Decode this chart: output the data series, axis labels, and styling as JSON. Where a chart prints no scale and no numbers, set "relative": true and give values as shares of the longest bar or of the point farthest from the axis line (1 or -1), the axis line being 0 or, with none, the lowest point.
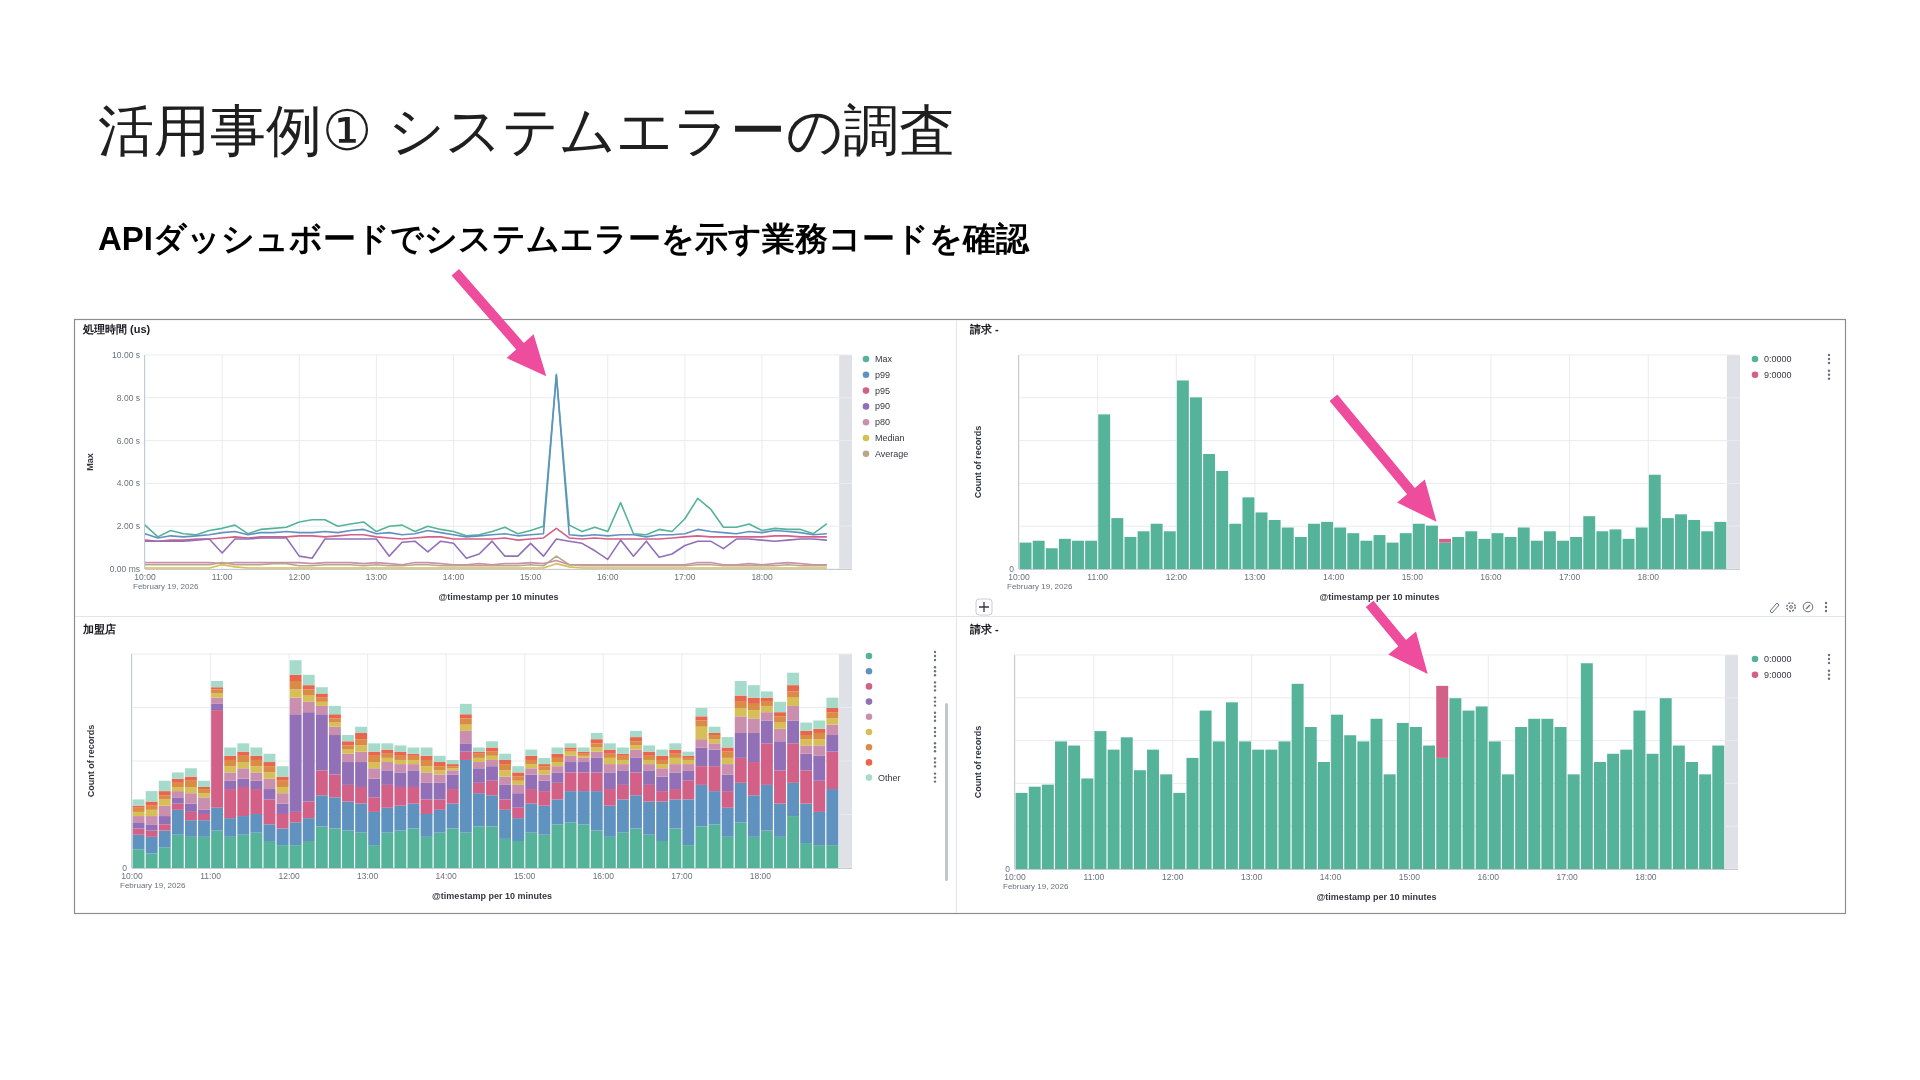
{
  "chart_data": [
    {
      "type": "other",
      "title": "活用事例① システムエラーの調査",
      "subtitle": "APIダッシュボードでシステムエラーを示す業務コードを確認"
    },
    {
      "type": "line",
      "title": "処理時間 (us)",
      "xlabel": "@timestamp per 10 minutes",
      "ylabel": "Max",
      "annotations": [
        "February 19, 2026"
      ],
      "grid": true,
      "legend": "right",
      "xlim": [
        "2026-02-19T10:00",
        "2026-02-19T19:10"
      ],
      "xticks": [
        {
          "value": "2026-02-19T10:00",
          "label": "10:00"
        },
        {
          "value": "2026-02-19T11:00",
          "label": "11:00"
        },
        {
          "value": "2026-02-19T12:00",
          "label": "12:00"
        },
        {
          "value": "2026-02-19T13:00",
          "label": "13:00"
        },
        {
          "value": "2026-02-19T14:00",
          "label": "14:00"
        },
        {
          "value": "2026-02-19T15:00",
          "label": "15:00"
        },
        {
          "value": "2026-02-19T16:00",
          "label": "16:00"
        },
        {
          "value": "2026-02-19T17:00",
          "label": "17:00"
        },
        {
          "value": "2026-02-19T18:00",
          "label": "18:00"
        }
      ],
      "ylim": [
        0,
        10
      ],
      "yticks": [
        {
          "value": 0,
          "label": "0.00 ms"
        },
        {
          "value": 2,
          "label": "2.00 s"
        },
        {
          "value": 4,
          "label": "4.00 s"
        },
        {
          "value": 6,
          "label": "6.00 s"
        },
        {
          "value": 8,
          "label": "8.00 s"
        },
        {
          "value": 10,
          "label": "10.00 s"
        }
      ],
      "bands": [
        {
          "axis": "x",
          "from": "2026-02-19T19:00",
          "to": "2026-02-19T19:10",
          "color": "#dfe1e6"
        }
      ],
      "x": [
        "2026-02-19T10:00",
        "2026-02-19T10:10",
        "2026-02-19T10:20",
        "2026-02-19T10:30",
        "2026-02-19T10:40",
        "2026-02-19T10:50",
        "2026-02-19T11:00",
        "2026-02-19T11:10",
        "2026-02-19T11:20",
        "2026-02-19T11:30",
        "2026-02-19T11:40",
        "2026-02-19T11:50",
        "2026-02-19T12:00",
        "2026-02-19T12:10",
        "2026-02-19T12:20",
        "2026-02-19T12:30",
        "2026-02-19T12:40",
        "2026-02-19T12:50",
        "2026-02-19T13:00",
        "2026-02-19T13:10",
        "2026-02-19T13:20",
        "2026-02-19T13:30",
        "2026-02-19T13:40",
        "2026-02-19T13:50",
        "2026-02-19T14:00",
        "2026-02-19T14:10",
        "2026-02-19T14:20",
        "2026-02-19T14:30",
        "2026-02-19T14:40",
        "2026-02-19T14:50",
        "2026-02-19T15:00",
        "2026-02-19T15:10",
        "2026-02-19T15:20",
        "2026-02-19T15:30",
        "2026-02-19T15:40",
        "2026-02-19T15:50",
        "2026-02-19T16:00",
        "2026-02-19T16:10",
        "2026-02-19T16:20",
        "2026-02-19T16:30",
        "2026-02-19T16:40",
        "2026-02-19T16:50",
        "2026-02-19T17:00",
        "2026-02-19T17:10",
        "2026-02-19T17:20",
        "2026-02-19T17:30",
        "2026-02-19T17:40",
        "2026-02-19T17:50",
        "2026-02-19T18:00",
        "2026-02-19T18:10",
        "2026-02-19T18:20",
        "2026-02-19T18:30",
        "2026-02-19T18:40",
        "2026-02-19T18:50"
      ],
      "series": [
        {
          "name": "Max",
          "color": "#54b399",
          "values": [
            2.05,
            1.5,
            1.8,
            1.65,
            1.6,
            1.8,
            1.9,
            2.05,
            1.65,
            1.85,
            1.9,
            1.95,
            2.2,
            2.3,
            2.3,
            2.0,
            2.1,
            2.2,
            1.75,
            2.0,
            2.05,
            1.75,
            2.0,
            1.85,
            1.75,
            1.55,
            1.6,
            1.75,
            1.95,
            1.65,
            1.8,
            2.0,
            9.1,
            2.05,
            1.75,
            1.95,
            1.75,
            3.1,
            1.65,
            1.6,
            1.85,
            1.75,
            2.35,
            3.3,
            2.8,
            1.95,
            1.95,
            2.1,
            1.8,
            1.9,
            1.85,
            1.85,
            1.65,
            2.1
          ]
        },
        {
          "name": "p99",
          "color": "#6092c0",
          "values": [
            1.65,
            1.45,
            1.55,
            1.5,
            1.55,
            1.6,
            1.7,
            1.75,
            1.6,
            1.7,
            1.7,
            1.75,
            1.7,
            1.7,
            1.75,
            1.7,
            1.8,
            1.85,
            1.65,
            1.7,
            1.6,
            1.65,
            1.8,
            1.7,
            1.6,
            1.5,
            1.55,
            1.6,
            1.65,
            1.55,
            1.6,
            1.65,
            9.05,
            1.6,
            1.55,
            1.6,
            1.55,
            1.6,
            1.6,
            1.5,
            1.6,
            1.6,
            1.65,
            1.85,
            1.75,
            1.7,
            1.65,
            1.75,
            1.7,
            1.8,
            1.75,
            1.7,
            1.6,
            1.65
          ]
        },
        {
          "name": "p95",
          "color": "#d36086",
          "values": [
            1.35,
            1.3,
            1.35,
            1.35,
            1.4,
            1.4,
            1.45,
            1.5,
            1.45,
            1.5,
            1.5,
            1.5,
            1.55,
            1.55,
            1.5,
            1.55,
            1.6,
            1.6,
            1.5,
            1.45,
            1.4,
            1.45,
            1.5,
            1.5,
            1.4,
            1.4,
            1.4,
            1.4,
            1.45,
            1.35,
            1.4,
            1.45,
            1.9,
            1.45,
            1.4,
            1.45,
            1.4,
            1.4,
            1.4,
            1.4,
            1.4,
            1.45,
            1.5,
            1.55,
            1.5,
            1.5,
            1.5,
            1.5,
            1.5,
            1.55,
            1.55,
            1.5,
            1.5,
            1.5
          ]
        },
        {
          "name": "p90",
          "color": "#9170b8",
          "values": [
            1.3,
            1.3,
            1.3,
            1.3,
            1.35,
            1.4,
            0.75,
            1.4,
            1.4,
            1.45,
            1.45,
            1.45,
            0.6,
            0.5,
            1.4,
            1.4,
            1.4,
            1.4,
            1.4,
            0.6,
            1.25,
            1.3,
            0.8,
            1.3,
            1.2,
            0.5,
            0.7,
            1.3,
            0.6,
            0.6,
            1.2,
            0.6,
            1.4,
            1.3,
            1.2,
            0.85,
            0.45,
            1.35,
            0.6,
            1.3,
            0.55,
            0.7,
            1.1,
            1.3,
            1.3,
            0.95,
            1.4,
            1.4,
            1.35,
            1.3,
            1.35,
            1.4,
            1.4,
            1.35
          ]
        },
        {
          "name": "p80",
          "color": "#ca8eae",
          "values": [
            0.3,
            0.3,
            0.3,
            0.3,
            0.3,
            0.3,
            0.25,
            0.3,
            0.3,
            0.3,
            0.3,
            0.3,
            0.3,
            0.25,
            0.3,
            0.3,
            0.3,
            0.25,
            0.3,
            0.25,
            0.2,
            0.3,
            0.3,
            0.25,
            0.2,
            0.2,
            0.25,
            0.2,
            0.25,
            0.25,
            0.3,
            0.25,
            0.4,
            0.2,
            0.2,
            0.2,
            0.2,
            0.2,
            0.2,
            0.2,
            0.2,
            0.2,
            0.2,
            0.3,
            0.3,
            0.2,
            0.2,
            0.25,
            0.2,
            0.25,
            0.3,
            0.25,
            0.2,
            0.2
          ]
        },
        {
          "name": "Median",
          "color": "#d6bf57",
          "values": [
            0.05,
            0.05,
            0.05,
            0.05,
            0.05,
            0.05,
            0.2,
            0.1,
            0.05,
            0.05,
            0.05,
            0.05,
            0.05,
            0.05,
            0.05,
            0.05,
            0.05,
            0.05,
            0.05,
            0.05,
            0.05,
            0.05,
            0.05,
            0.05,
            0.05,
            0.05,
            0.05,
            0.05,
            0.05,
            0.05,
            0.05,
            0.05,
            0.25,
            0.1,
            0.05,
            0.05,
            0.05,
            0.05,
            0.05,
            0.05,
            0.05,
            0.05,
            0.05,
            0.05,
            0.05,
            0.05,
            0.05,
            0.05,
            0.05,
            0.05,
            0.05,
            0.05,
            0.05,
            0.05
          ]
        },
        {
          "name": "Average",
          "color": "#b9a888",
          "values": [
            0.2,
            0.2,
            0.2,
            0.2,
            0.2,
            0.2,
            0.3,
            0.2,
            0.2,
            0.2,
            0.25,
            0.25,
            0.15,
            0.15,
            0.2,
            0.2,
            0.2,
            0.15,
            0.2,
            0.15,
            0.15,
            0.2,
            0.2,
            0.15,
            0.15,
            0.15,
            0.15,
            0.15,
            0.15,
            0.15,
            0.2,
            0.15,
            0.6,
            0.2,
            0.15,
            0.15,
            0.15,
            0.15,
            0.15,
            0.15,
            0.15,
            0.15,
            0.15,
            0.2,
            0.2,
            0.15,
            0.15,
            0.15,
            0.15,
            0.15,
            0.2,
            0.15,
            0.15,
            0.15
          ]
        }
      ]
    },
    {
      "type": "bar",
      "stacked": true,
      "relative": true,
      "title": "請求 -",
      "xlabel": "@timestamp per 10 minutes",
      "ylabel": "Count of records",
      "annotations": [
        "February 19, 2026",
        "0"
      ],
      "grid": true,
      "legend": "right",
      "xlim": [
        "2026-02-19T10:00",
        "2026-02-19T19:10"
      ],
      "xticks": [
        {
          "value": "2026-02-19T10:00",
          "label": "10:00"
        },
        {
          "value": "2026-02-19T11:00",
          "label": "11:00"
        },
        {
          "value": "2026-02-19T12:00",
          "label": "12:00"
        },
        {
          "value": "2026-02-19T13:00",
          "label": "13:00"
        },
        {
          "value": "2026-02-19T14:00",
          "label": "14:00"
        },
        {
          "value": "2026-02-19T15:00",
          "label": "15:00"
        },
        {
          "value": "2026-02-19T16:00",
          "label": "16:00"
        },
        {
          "value": "2026-02-19T17:00",
          "label": "17:00"
        },
        {
          "value": "2026-02-19T18:00",
          "label": "18:00"
        }
      ],
      "bands": [
        {
          "axis": "x",
          "from": "2026-02-19T19:00",
          "to": "2026-02-19T19:10",
          "color": "#dfe1e6"
        }
      ],
      "x": [
        "2026-02-19T10:05",
        "2026-02-19T10:15",
        "2026-02-19T10:25",
        "2026-02-19T10:35",
        "2026-02-19T10:45",
        "2026-02-19T10:55",
        "2026-02-19T11:05",
        "2026-02-19T11:15",
        "2026-02-19T11:25",
        "2026-02-19T11:35",
        "2026-02-19T11:45",
        "2026-02-19T11:55",
        "2026-02-19T12:05",
        "2026-02-19T12:15",
        "2026-02-19T12:25",
        "2026-02-19T12:35",
        "2026-02-19T12:45",
        "2026-02-19T12:55",
        "2026-02-19T13:05",
        "2026-02-19T13:15",
        "2026-02-19T13:25",
        "2026-02-19T13:35",
        "2026-02-19T13:45",
        "2026-02-19T13:55",
        "2026-02-19T14:05",
        "2026-02-19T14:15",
        "2026-02-19T14:25",
        "2026-02-19T14:35",
        "2026-02-19T14:45",
        "2026-02-19T14:55",
        "2026-02-19T15:05",
        "2026-02-19T15:15",
        "2026-02-19T15:25",
        "2026-02-19T15:35",
        "2026-02-19T15:45",
        "2026-02-19T15:55",
        "2026-02-19T16:05",
        "2026-02-19T16:15",
        "2026-02-19T16:25",
        "2026-02-19T16:35",
        "2026-02-19T16:45",
        "2026-02-19T16:55",
        "2026-02-19T17:05",
        "2026-02-19T17:15",
        "2026-02-19T17:25",
        "2026-02-19T17:35",
        "2026-02-19T17:45",
        "2026-02-19T17:55",
        "2026-02-19T18:05",
        "2026-02-19T18:15",
        "2026-02-19T18:25",
        "2026-02-19T18:35",
        "2026-02-19T18:45",
        "2026-02-19T18:55"
      ],
      "series": [
        {
          "name": "0:0000",
          "color": "#54b399",
          "values": [
            0.14,
            0.15,
            0.11,
            0.16,
            0.15,
            0.15,
            0.82,
            0.27,
            0.17,
            0.2,
            0.24,
            0.2,
            1.0,
            0.91,
            0.61,
            0.52,
            0.24,
            0.38,
            0.3,
            0.26,
            0.22,
            0.17,
            0.24,
            0.25,
            0.22,
            0.19,
            0.15,
            0.18,
            0.14,
            0.19,
            0.24,
            0.23,
            0.14,
            0.17,
            0.2,
            0.16,
            0.19,
            0.17,
            0.22,
            0.15,
            0.2,
            0.15,
            0.17,
            0.28,
            0.2,
            0.21,
            0.16,
            0.22,
            0.5,
            0.27,
            0.29,
            0.26,
            0.2,
            0.25
          ]
        },
        {
          "name": "9:0000",
          "color": "#d36086",
          "values": [
            null,
            null,
            null,
            null,
            null,
            null,
            null,
            null,
            null,
            null,
            null,
            null,
            null,
            null,
            null,
            null,
            null,
            null,
            null,
            null,
            null,
            null,
            null,
            null,
            null,
            null,
            null,
            null,
            null,
            null,
            null,
            null,
            0.02,
            null,
            null,
            null,
            null,
            null,
            null,
            null,
            null,
            null,
            null,
            null,
            null,
            null,
            null,
            null,
            null,
            null,
            null,
            null,
            null,
            null
          ]
        }
      ]
    },
    {
      "type": "bar",
      "stacked": true,
      "relative": true,
      "title": "加盟店",
      "xlabel": "@timestamp per 10 minutes",
      "ylabel": "Count of records",
      "annotations": [
        "February 19, 2026",
        "0"
      ],
      "grid": true,
      "legend": "right",
      "xlim": [
        "2026-02-19T10:00",
        "2026-02-19T19:10"
      ],
      "xticks": [
        {
          "value": "2026-02-19T10:00",
          "label": "10:00"
        },
        {
          "value": "2026-02-19T11:00",
          "label": "11:00"
        },
        {
          "value": "2026-02-19T12:00",
          "label": "12:00"
        },
        {
          "value": "2026-02-19T13:00",
          "label": "13:00"
        },
        {
          "value": "2026-02-19T14:00",
          "label": "14:00"
        },
        {
          "value": "2026-02-19T15:00",
          "label": "15:00"
        },
        {
          "value": "2026-02-19T16:00",
          "label": "16:00"
        },
        {
          "value": "2026-02-19T17:00",
          "label": "17:00"
        },
        {
          "value": "2026-02-19T18:00",
          "label": "18:00"
        }
      ],
      "bands": [
        {
          "axis": "x",
          "from": "2026-02-19T19:00",
          "to": "2026-02-19T19:10",
          "color": "#dfe1e6"
        }
      ],
      "x": [
        "2026-02-19T10:05",
        "2026-02-19T10:15",
        "2026-02-19T10:25",
        "2026-02-19T10:35",
        "2026-02-19T10:45",
        "2026-02-19T10:55",
        "2026-02-19T11:05",
        "2026-02-19T11:15",
        "2026-02-19T11:25",
        "2026-02-19T11:35",
        "2026-02-19T11:45",
        "2026-02-19T11:55",
        "2026-02-19T12:05",
        "2026-02-19T12:15",
        "2026-02-19T12:25",
        "2026-02-19T12:35",
        "2026-02-19T12:45",
        "2026-02-19T12:55",
        "2026-02-19T13:05",
        "2026-02-19T13:15",
        "2026-02-19T13:25",
        "2026-02-19T13:35",
        "2026-02-19T13:45",
        "2026-02-19T13:55",
        "2026-02-19T14:05",
        "2026-02-19T14:15",
        "2026-02-19T14:25",
        "2026-02-19T14:35",
        "2026-02-19T14:45",
        "2026-02-19T14:55",
        "2026-02-19T15:05",
        "2026-02-19T15:15",
        "2026-02-19T15:25",
        "2026-02-19T15:35",
        "2026-02-19T15:45",
        "2026-02-19T15:55",
        "2026-02-19T16:05",
        "2026-02-19T16:15",
        "2026-02-19T16:25",
        "2026-02-19T16:35",
        "2026-02-19T16:45",
        "2026-02-19T16:55",
        "2026-02-19T17:05",
        "2026-02-19T17:15",
        "2026-02-19T17:25",
        "2026-02-19T17:35",
        "2026-02-19T17:45",
        "2026-02-19T17:55",
        "2026-02-19T18:05",
        "2026-02-19T18:15",
        "2026-02-19T18:25",
        "2026-02-19T18:35",
        "2026-02-19T18:45",
        "2026-02-19T18:55"
      ],
      "series": [
        {
          "color": "#54b399",
          "values": [
            0.09,
            0.07,
            0.1,
            0.16,
            0.15,
            0.15,
            0.18,
            0.15,
            0.16,
            0.17,
            0.13,
            0.11,
            0.11,
            0.13,
            0.2,
            0.19,
            0.18,
            0.17,
            0.11,
            0.17,
            0.18,
            0.19,
            0.15,
            0.17,
            0.19,
            0.17,
            0.2,
            0.2,
            0.14,
            0.13,
            0.17,
            0.16,
            0.21,
            0.22,
            0.21,
            0.18,
            0.15,
            0.17,
            0.19,
            0.16,
            0.13,
            0.19,
            0.11,
            0.2,
            0.21,
            0.15,
            0.22,
            0.15,
            0.18,
            0.15,
            0.25,
            0.12,
            0.11,
            0.11
          ]
        },
        {
          "color": "#6092c0",
          "values": [
            0.07,
            0.08,
            0.08,
            0.12,
            0.08,
            0.08,
            0.11,
            0.09,
            0.09,
            0.09,
            0.08,
            0.08,
            0.11,
            0.11,
            0.15,
            0.15,
            0.14,
            0.14,
            0.16,
            0.12,
            0.12,
            0.12,
            0.11,
            0.11,
            0.12,
            0.35,
            0.16,
            0.15,
            0.14,
            0.11,
            0.14,
            0.14,
            0.12,
            0.15,
            0.16,
            0.19,
            0.15,
            0.16,
            0.16,
            0.16,
            0.19,
            0.14,
            0.22,
            0.2,
            0.16,
            0.14,
            0.19,
            0.2,
            0.22,
            0.16,
            0.16,
            0.19,
            0.16,
            0.27
          ]
        },
        {
          "color": "#d36086",
          "values": [
            0.03,
            0.03,
            0.03,
            0.03,
            0.04,
            0.03,
            0.47,
            0.14,
            0.14,
            0.12,
            0.12,
            0.07,
            0.05,
            0.08,
            0.12,
            0.11,
            0.08,
            0.08,
            0.07,
            0.11,
            0.09,
            0.08,
            0.07,
            0.05,
            0.07,
            0.04,
            0.05,
            0.07,
            0.05,
            0.05,
            0.07,
            0.07,
            0.08,
            0.09,
            0.09,
            0.09,
            0.08,
            0.07,
            0.11,
            0.08,
            0.05,
            0.05,
            0.09,
            0.09,
            0.12,
            0.08,
            0.12,
            0.16,
            0.2,
            0.16,
            0.19,
            0.16,
            0.15,
            0.18
          ]
        },
        {
          "color": "#9170b8",
          "values": [
            0.03,
            0.03,
            0.04,
            0.03,
            0.04,
            0.02,
            0.03,
            0.04,
            0.04,
            0.04,
            0.05,
            0.05,
            0.47,
            0.43,
            0.27,
            0.19,
            0.11,
            0.12,
            0.09,
            0.07,
            0.07,
            0.08,
            0.08,
            0.08,
            0.07,
            0.04,
            0.07,
            0.07,
            0.07,
            0.07,
            0.07,
            0.05,
            0.05,
            0.05,
            0.05,
            0.07,
            0.08,
            0.07,
            0.07,
            0.07,
            0.07,
            0.08,
            0.05,
            0.09,
            0.08,
            0.08,
            0.12,
            0.14,
            0.11,
            0.14,
            0.11,
            0.08,
            0.12,
            0.08
          ]
        },
        {
          "color": "#ca8eae",
          "values": [
            0.03,
            0.04,
            0.05,
            0.03,
            0.05,
            0.06,
            0.03,
            0.04,
            0.05,
            0.04,
            0.05,
            0.05,
            0.08,
            0.05,
            0.04,
            0.04,
            0.04,
            0.05,
            0.05,
            0.04,
            0.04,
            0.03,
            0.05,
            0.04,
            0.02,
            0.06,
            0.03,
            0.03,
            0.04,
            0.04,
            0.03,
            0.03,
            0.03,
            0.03,
            0.02,
            0.03,
            0.04,
            0.03,
            0.04,
            0.03,
            0.04,
            0.04,
            0.03,
            0.04,
            0.03,
            0.05,
            0.08,
            0.07,
            0.04,
            0.06,
            0.07,
            0.04,
            0.05,
            0.05
          ]
        },
        {
          "color": "#d6bf57",
          "values": [
            0.02,
            0.03,
            0.03,
            0.02,
            0.03,
            0.02,
            0.02,
            0.03,
            0.03,
            0.03,
            0.03,
            0.03,
            0.04,
            0.03,
            0.02,
            0.02,
            0.02,
            0.03,
            0.03,
            0.02,
            0.02,
            0.02,
            0.03,
            0.02,
            0.01,
            0.03,
            0.02,
            0.02,
            0.03,
            0.02,
            0.02,
            0.02,
            0.02,
            0.02,
            0.01,
            0.02,
            0.03,
            0.02,
            0.02,
            0.02,
            0.02,
            0.03,
            0.02,
            0.06,
            0.02,
            0.03,
            0.04,
            0.04,
            0.03,
            0.03,
            0.04,
            0.03,
            0.03,
            0.03
          ]
        },
        {
          "color": "#da8b45",
          "values": [
            0.02,
            0.02,
            0.02,
            0.02,
            0.03,
            0.02,
            0.02,
            0.03,
            0.03,
            0.03,
            0.03,
            0.03,
            0.04,
            0.03,
            0.02,
            0.02,
            0.02,
            0.03,
            0.03,
            0.02,
            0.02,
            0.02,
            0.03,
            0.02,
            0.01,
            0.03,
            0.02,
            0.02,
            0.03,
            0.02,
            0.02,
            0.02,
            0.02,
            0.01,
            0.01,
            0.02,
            0.02,
            0.02,
            0.02,
            0.02,
            0.02,
            0.02,
            0.01,
            0.03,
            0.02,
            0.03,
            0.03,
            0.03,
            0.02,
            0.03,
            0.03,
            0.02,
            0.03,
            0.03
          ]
        },
        {
          "color": "#e7664c",
          "values": [
            0.01,
            0.02,
            0.02,
            0.02,
            0.02,
            0.01,
            0.01,
            0.02,
            0.02,
            0.02,
            0.02,
            0.02,
            0.03,
            0.02,
            0.02,
            0.02,
            0.02,
            0.03,
            0.02,
            0.02,
            0.02,
            0.01,
            0.02,
            0.02,
            0.01,
            0.02,
            0.01,
            0.02,
            0.02,
            0.02,
            0.02,
            0.01,
            0.02,
            0.01,
            0.01,
            0.02,
            0.02,
            0.01,
            0.02,
            0.02,
            0.02,
            0.02,
            0.01,
            0.02,
            0.01,
            0.02,
            0.03,
            0.03,
            0.02,
            0.02,
            0.03,
            0.02,
            0.02,
            0.02
          ]
        },
        {
          "name": "Other",
          "color": "#a6dbcc",
          "values": [
            0.03,
            0.05,
            0.05,
            0.03,
            0.04,
            0.03,
            0.03,
            0.04,
            0.04,
            0.04,
            0.04,
            0.05,
            0.07,
            0.05,
            0.03,
            0.04,
            0.03,
            0.03,
            0.04,
            0.03,
            0.03,
            0.03,
            0.04,
            0.03,
            0.02,
            0.05,
            0.02,
            0.03,
            0.03,
            0.03,
            0.03,
            0.03,
            0.03,
            0.02,
            0.02,
            0.03,
            0.03,
            0.03,
            0.03,
            0.03,
            0.03,
            0.03,
            0.02,
            0.04,
            0.03,
            0.05,
            0.07,
            0.06,
            0.03,
            0.05,
            0.06,
            0.04,
            0.04,
            0.05
          ]
        }
      ]
    },
    {
      "type": "bar",
      "stacked": true,
      "relative": true,
      "title": "請求 -",
      "xlabel": "@timestamp per 10 minutes",
      "ylabel": "Count of records",
      "annotations": [
        "February 19, 2026",
        "0"
      ],
      "grid": true,
      "legend": "right",
      "xlim": [
        "2026-02-19T10:00",
        "2026-02-19T19:10"
      ],
      "xticks": [
        {
          "value": "2026-02-19T10:00",
          "label": "10:00"
        },
        {
          "value": "2026-02-19T11:00",
          "label": "11:00"
        },
        {
          "value": "2026-02-19T12:00",
          "label": "12:00"
        },
        {
          "value": "2026-02-19T13:00",
          "label": "13:00"
        },
        {
          "value": "2026-02-19T14:00",
          "label": "14:00"
        },
        {
          "value": "2026-02-19T15:00",
          "label": "15:00"
        },
        {
          "value": "2026-02-19T16:00",
          "label": "16:00"
        },
        {
          "value": "2026-02-19T17:00",
          "label": "17:00"
        },
        {
          "value": "2026-02-19T18:00",
          "label": "18:00"
        }
      ],
      "bands": [
        {
          "axis": "x",
          "from": "2026-02-19T19:00",
          "to": "2026-02-19T19:10",
          "color": "#dfe1e6"
        }
      ],
      "x": [
        "2026-02-19T10:05",
        "2026-02-19T10:15",
        "2026-02-19T10:25",
        "2026-02-19T10:35",
        "2026-02-19T10:45",
        "2026-02-19T10:55",
        "2026-02-19T11:05",
        "2026-02-19T11:15",
        "2026-02-19T11:25",
        "2026-02-19T11:35",
        "2026-02-19T11:45",
        "2026-02-19T11:55",
        "2026-02-19T12:05",
        "2026-02-19T12:15",
        "2026-02-19T12:25",
        "2026-02-19T12:35",
        "2026-02-19T12:45",
        "2026-02-19T12:55",
        "2026-02-19T13:05",
        "2026-02-19T13:15",
        "2026-02-19T13:25",
        "2026-02-19T13:35",
        "2026-02-19T13:45",
        "2026-02-19T13:55",
        "2026-02-19T14:05",
        "2026-02-19T14:15",
        "2026-02-19T14:25",
        "2026-02-19T14:35",
        "2026-02-19T14:45",
        "2026-02-19T14:55",
        "2026-02-19T15:05",
        "2026-02-19T15:15",
        "2026-02-19T15:25",
        "2026-02-19T15:35",
        "2026-02-19T15:45",
        "2026-02-19T15:55",
        "2026-02-19T16:05",
        "2026-02-19T16:15",
        "2026-02-19T16:25",
        "2026-02-19T16:35",
        "2026-02-19T16:45",
        "2026-02-19T16:55",
        "2026-02-19T17:05",
        "2026-02-19T17:15",
        "2026-02-19T17:25",
        "2026-02-19T17:35",
        "2026-02-19T17:45",
        "2026-02-19T17:55",
        "2026-02-19T18:05",
        "2026-02-19T18:15",
        "2026-02-19T18:25",
        "2026-02-19T18:35",
        "2026-02-19T18:45",
        "2026-02-19T18:55"
      ],
      "series": [
        {
          "name": "0:0000",
          "color": "#54b399",
          "values": [
            0.37,
            0.4,
            0.41,
            0.62,
            0.6,
            0.44,
            0.67,
            0.58,
            0.64,
            0.48,
            0.58,
            0.46,
            0.37,
            0.54,
            0.77,
            0.62,
            0.81,
            0.62,
            0.58,
            0.58,
            0.62,
            0.9,
            0.69,
            0.52,
            0.75,
            0.65,
            0.62,
            0.73,
            0.46,
            0.71,
            0.69,
            0.6,
            0.54,
            0.83,
            0.77,
            0.79,
            0.62,
            0.46,
            0.69,
            0.73,
            0.73,
            0.69,
            0.46,
            1.0,
            0.52,
            0.56,
            0.58,
            0.77,
            0.56,
            0.83,
            0.6,
            0.52,
            0.46,
            0.6
          ]
        },
        {
          "name": "9:0000",
          "color": "#d36086",
          "values": [
            null,
            null,
            null,
            null,
            null,
            null,
            null,
            null,
            null,
            null,
            null,
            null,
            null,
            null,
            null,
            null,
            null,
            null,
            null,
            null,
            null,
            null,
            null,
            null,
            null,
            null,
            null,
            null,
            null,
            null,
            null,
            null,
            0.35,
            null,
            null,
            null,
            null,
            null,
            null,
            null,
            null,
            null,
            null,
            null,
            null,
            null,
            null,
            null,
            null,
            null,
            null,
            null,
            null,
            null
          ]
        }
      ]
    }
  ]
}
